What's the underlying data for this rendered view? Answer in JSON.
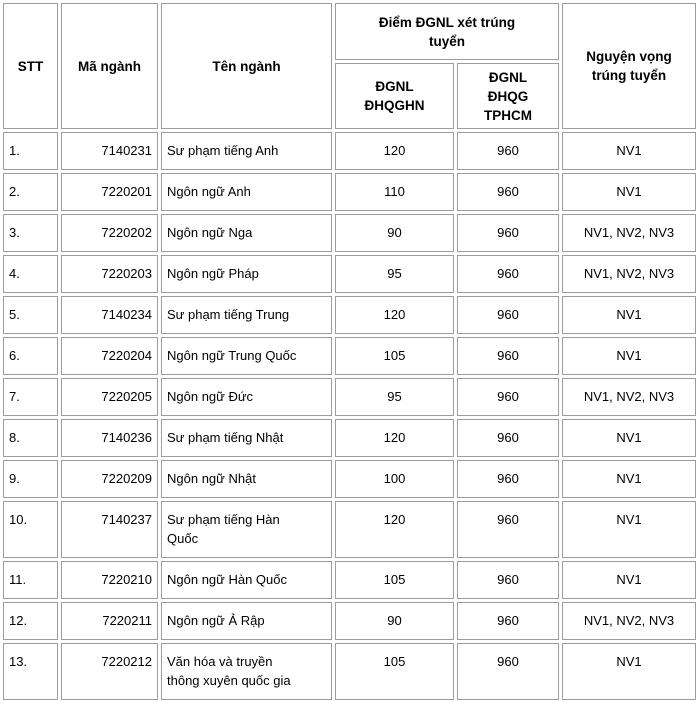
{
  "table": {
    "title_semantic": "admission-scores-table",
    "column_order": [
      "stt",
      "ma_nganh",
      "ten_nganh",
      "dgnl_hn",
      "dgnl_hcm",
      "nguyen_vong"
    ],
    "columns": {
      "stt": "STT",
      "ma_nganh": "Mã ngành",
      "ten_nganh": "Tên ngành",
      "diem_group": "Điểm ĐGNL xét trúng\ntuyển",
      "dgnl_hn": "ĐGNL\nĐHQGHN",
      "dgnl_hcm": "ĐGNL\nĐHQG\nTPHCM",
      "nguyen_vong": "Nguyện vọng\ntrúng tuyển"
    },
    "rows": [
      {
        "stt": "1.",
        "ma_nganh": "7140231",
        "ten_nganh": "Sư phạm tiếng Anh",
        "dgnl_hn": "120",
        "dgnl_hcm": "960",
        "nguyen_vong": "NV1"
      },
      {
        "stt": "2.",
        "ma_nganh": "7220201",
        "ten_nganh": "Ngôn ngữ Anh",
        "dgnl_hn": "110",
        "dgnl_hcm": "960",
        "nguyen_vong": "NV1"
      },
      {
        "stt": "3.",
        "ma_nganh": "7220202",
        "ten_nganh": "Ngôn ngữ Nga",
        "dgnl_hn": "90",
        "dgnl_hcm": "960",
        "nguyen_vong": "NV1, NV2, NV3"
      },
      {
        "stt": "4.",
        "ma_nganh": "7220203",
        "ten_nganh": "Ngôn ngữ Pháp",
        "dgnl_hn": "95",
        "dgnl_hcm": "960",
        "nguyen_vong": "NV1, NV2, NV3"
      },
      {
        "stt": "5.",
        "ma_nganh": "7140234",
        "ten_nganh": "Sư phạm tiếng Trung",
        "dgnl_hn": "120",
        "dgnl_hcm": "960",
        "nguyen_vong": "NV1"
      },
      {
        "stt": "6.",
        "ma_nganh": "7220204",
        "ten_nganh": "Ngôn ngữ Trung Quốc",
        "dgnl_hn": "105",
        "dgnl_hcm": "960",
        "nguyen_vong": "NV1"
      },
      {
        "stt": "7.",
        "ma_nganh": "7220205",
        "ten_nganh": "Ngôn ngữ Đức",
        "dgnl_hn": "95",
        "dgnl_hcm": "960",
        "nguyen_vong": "NV1, NV2, NV3"
      },
      {
        "stt": "8.",
        "ma_nganh": "7140236",
        "ten_nganh": "Sư phạm tiếng Nhật",
        "dgnl_hn": "120",
        "dgnl_hcm": "960",
        "nguyen_vong": "NV1"
      },
      {
        "stt": "9.",
        "ma_nganh": "7220209",
        "ten_nganh": "Ngôn ngữ Nhật",
        "dgnl_hn": "100",
        "dgnl_hcm": "960",
        "nguyen_vong": "NV1"
      },
      {
        "stt": "10.",
        "ma_nganh": "7140237",
        "ten_nganh": "Sư phạm tiếng Hàn\nQuốc",
        "dgnl_hn": "120",
        "dgnl_hcm": "960",
        "nguyen_vong": "NV1"
      },
      {
        "stt": "11.",
        "ma_nganh": "7220210",
        "ten_nganh": "Ngôn ngữ Hàn Quốc",
        "dgnl_hn": "105",
        "dgnl_hcm": "960",
        "nguyen_vong": "NV1"
      },
      {
        "stt": "12.",
        "ma_nganh": "7220211",
        "ten_nganh": "Ngôn ngữ Ả Rập",
        "dgnl_hn": "90",
        "dgnl_hcm": "960",
        "nguyen_vong": "NV1, NV2, NV3"
      },
      {
        "stt": "13.",
        "ma_nganh": "7220212",
        "ten_nganh": "Văn hóa và truyền\nthông xuyên quốc gia",
        "dgnl_hn": "105",
        "dgnl_hcm": "960",
        "nguyen_vong": "NV1"
      }
    ]
  },
  "colors": {
    "border": "#9c9c9c",
    "text": "#000000",
    "background": "#ffffff"
  }
}
